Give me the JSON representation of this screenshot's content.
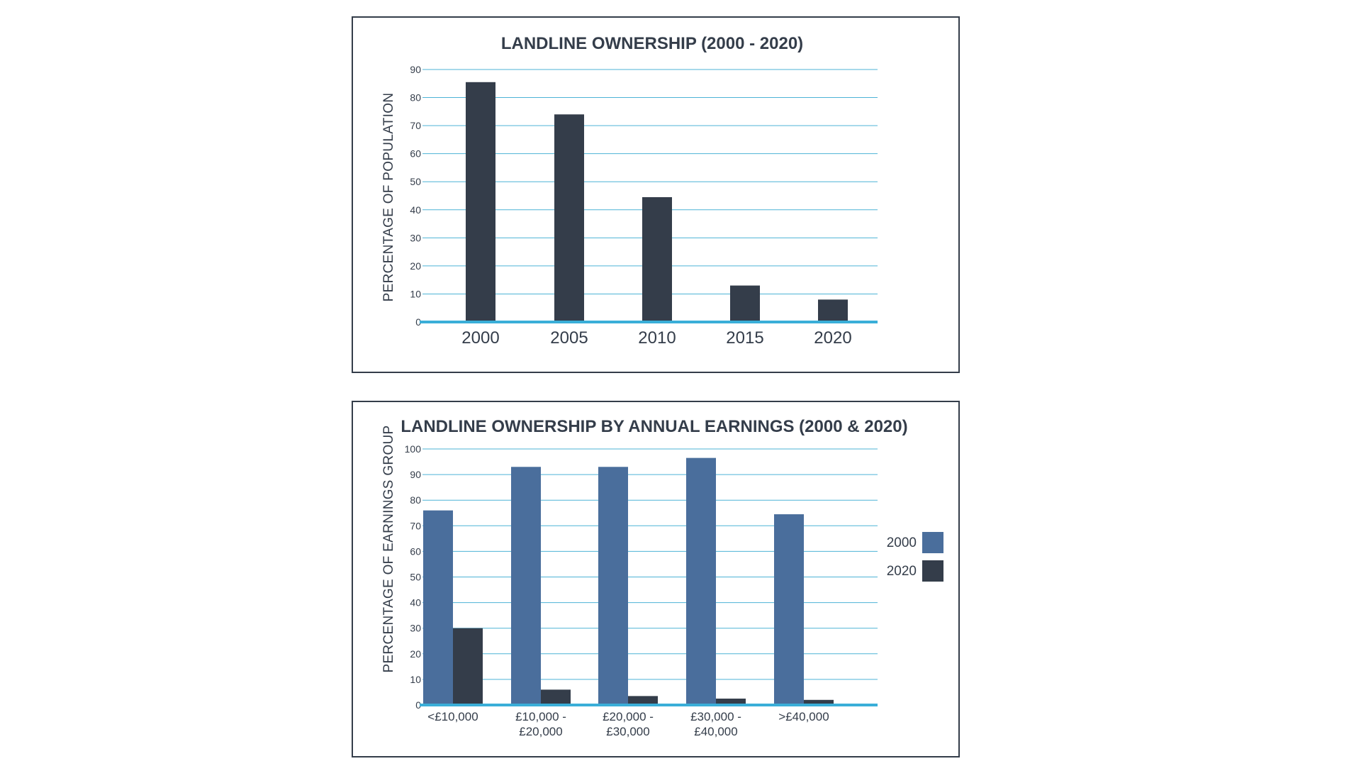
{
  "colors": {
    "dark": "#343d4a",
    "blue": "#4a6e9c",
    "grid": "#4db3d6",
    "axis": "#3aaed8"
  },
  "chart_data": [
    {
      "type": "bar",
      "title": "LANDLINE OWNERSHIP (2000 - 2020)",
      "ylabel": "PERCENTAGE OF POPULATION",
      "xlabel": "",
      "categories": [
        "2000",
        "2005",
        "2010",
        "2015",
        "2020"
      ],
      "values": [
        85.5,
        74,
        44.5,
        13,
        8
      ],
      "yticks": [
        "0",
        "10",
        "20",
        "30",
        "40",
        "50",
        "60",
        "70",
        "80",
        "90"
      ],
      "ylim": [
        0,
        90
      ],
      "grid": true
    },
    {
      "type": "bar",
      "title": "LANDLINE OWNERSHIP BY ANNUAL EARNINGS (2000 & 2020)",
      "ylabel": "PERCENTAGE OF EARNINGS GROUP",
      "xlabel": "",
      "categories": [
        [
          "<£10,000"
        ],
        [
          "£10,000 -",
          "£20,000"
        ],
        [
          "£20,000 -",
          "£30,000"
        ],
        [
          "£30,000 -",
          "£40,000"
        ],
        [
          ">£40,000"
        ]
      ],
      "series": [
        {
          "name": "2000",
          "values": [
            76,
            93,
            93,
            96.5,
            74.5
          ]
        },
        {
          "name": "2020",
          "values": [
            30,
            6,
            3.5,
            2.5,
            2
          ]
        }
      ],
      "yticks": [
        "0",
        "10",
        "20",
        "30",
        "40",
        "50",
        "60",
        "70",
        "80",
        "90",
        "100"
      ],
      "ylim": [
        0,
        100
      ],
      "grid": true,
      "legend_position": "right"
    }
  ]
}
